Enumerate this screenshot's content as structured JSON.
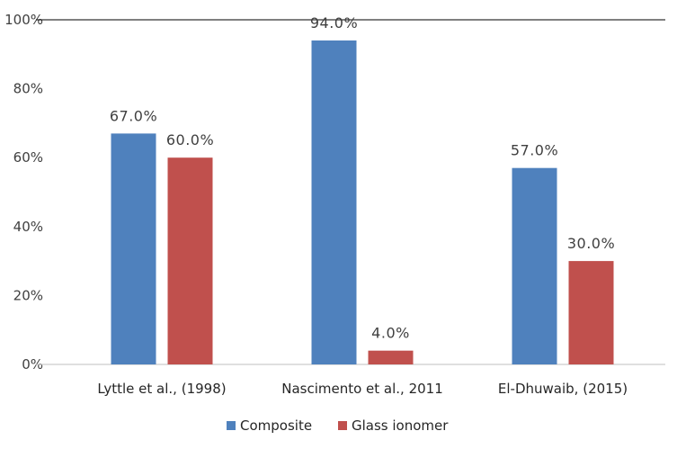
{
  "chart_data": {
    "type": "bar",
    "title": "",
    "xlabel": "",
    "ylabel": "",
    "categories": [
      "Lyttle et al., (1998)",
      "Nascimento et al., 2011",
      "El-Dhuwaib, (2015)"
    ],
    "series": [
      {
        "name": "Composite",
        "values": [
          67.0,
          94.0,
          57.0
        ],
        "labels": [
          "67.0%",
          "94.0%",
          "57.0%"
        ],
        "color": "#4f81bd"
      },
      {
        "name": "Glass ionomer",
        "values": [
          60.0,
          4.0,
          30.0
        ],
        "labels": [
          "60.0%",
          "4.0%",
          "30.0%"
        ],
        "color": "#c0504d"
      }
    ],
    "ylim": [
      0,
      100
    ],
    "yticks": [
      0,
      20,
      40,
      60,
      80,
      100
    ],
    "ytick_labels": [
      "0%",
      "20%",
      "40%",
      "60%",
      "80%",
      "100%"
    ],
    "grid": false,
    "legend_position": "bottom"
  }
}
